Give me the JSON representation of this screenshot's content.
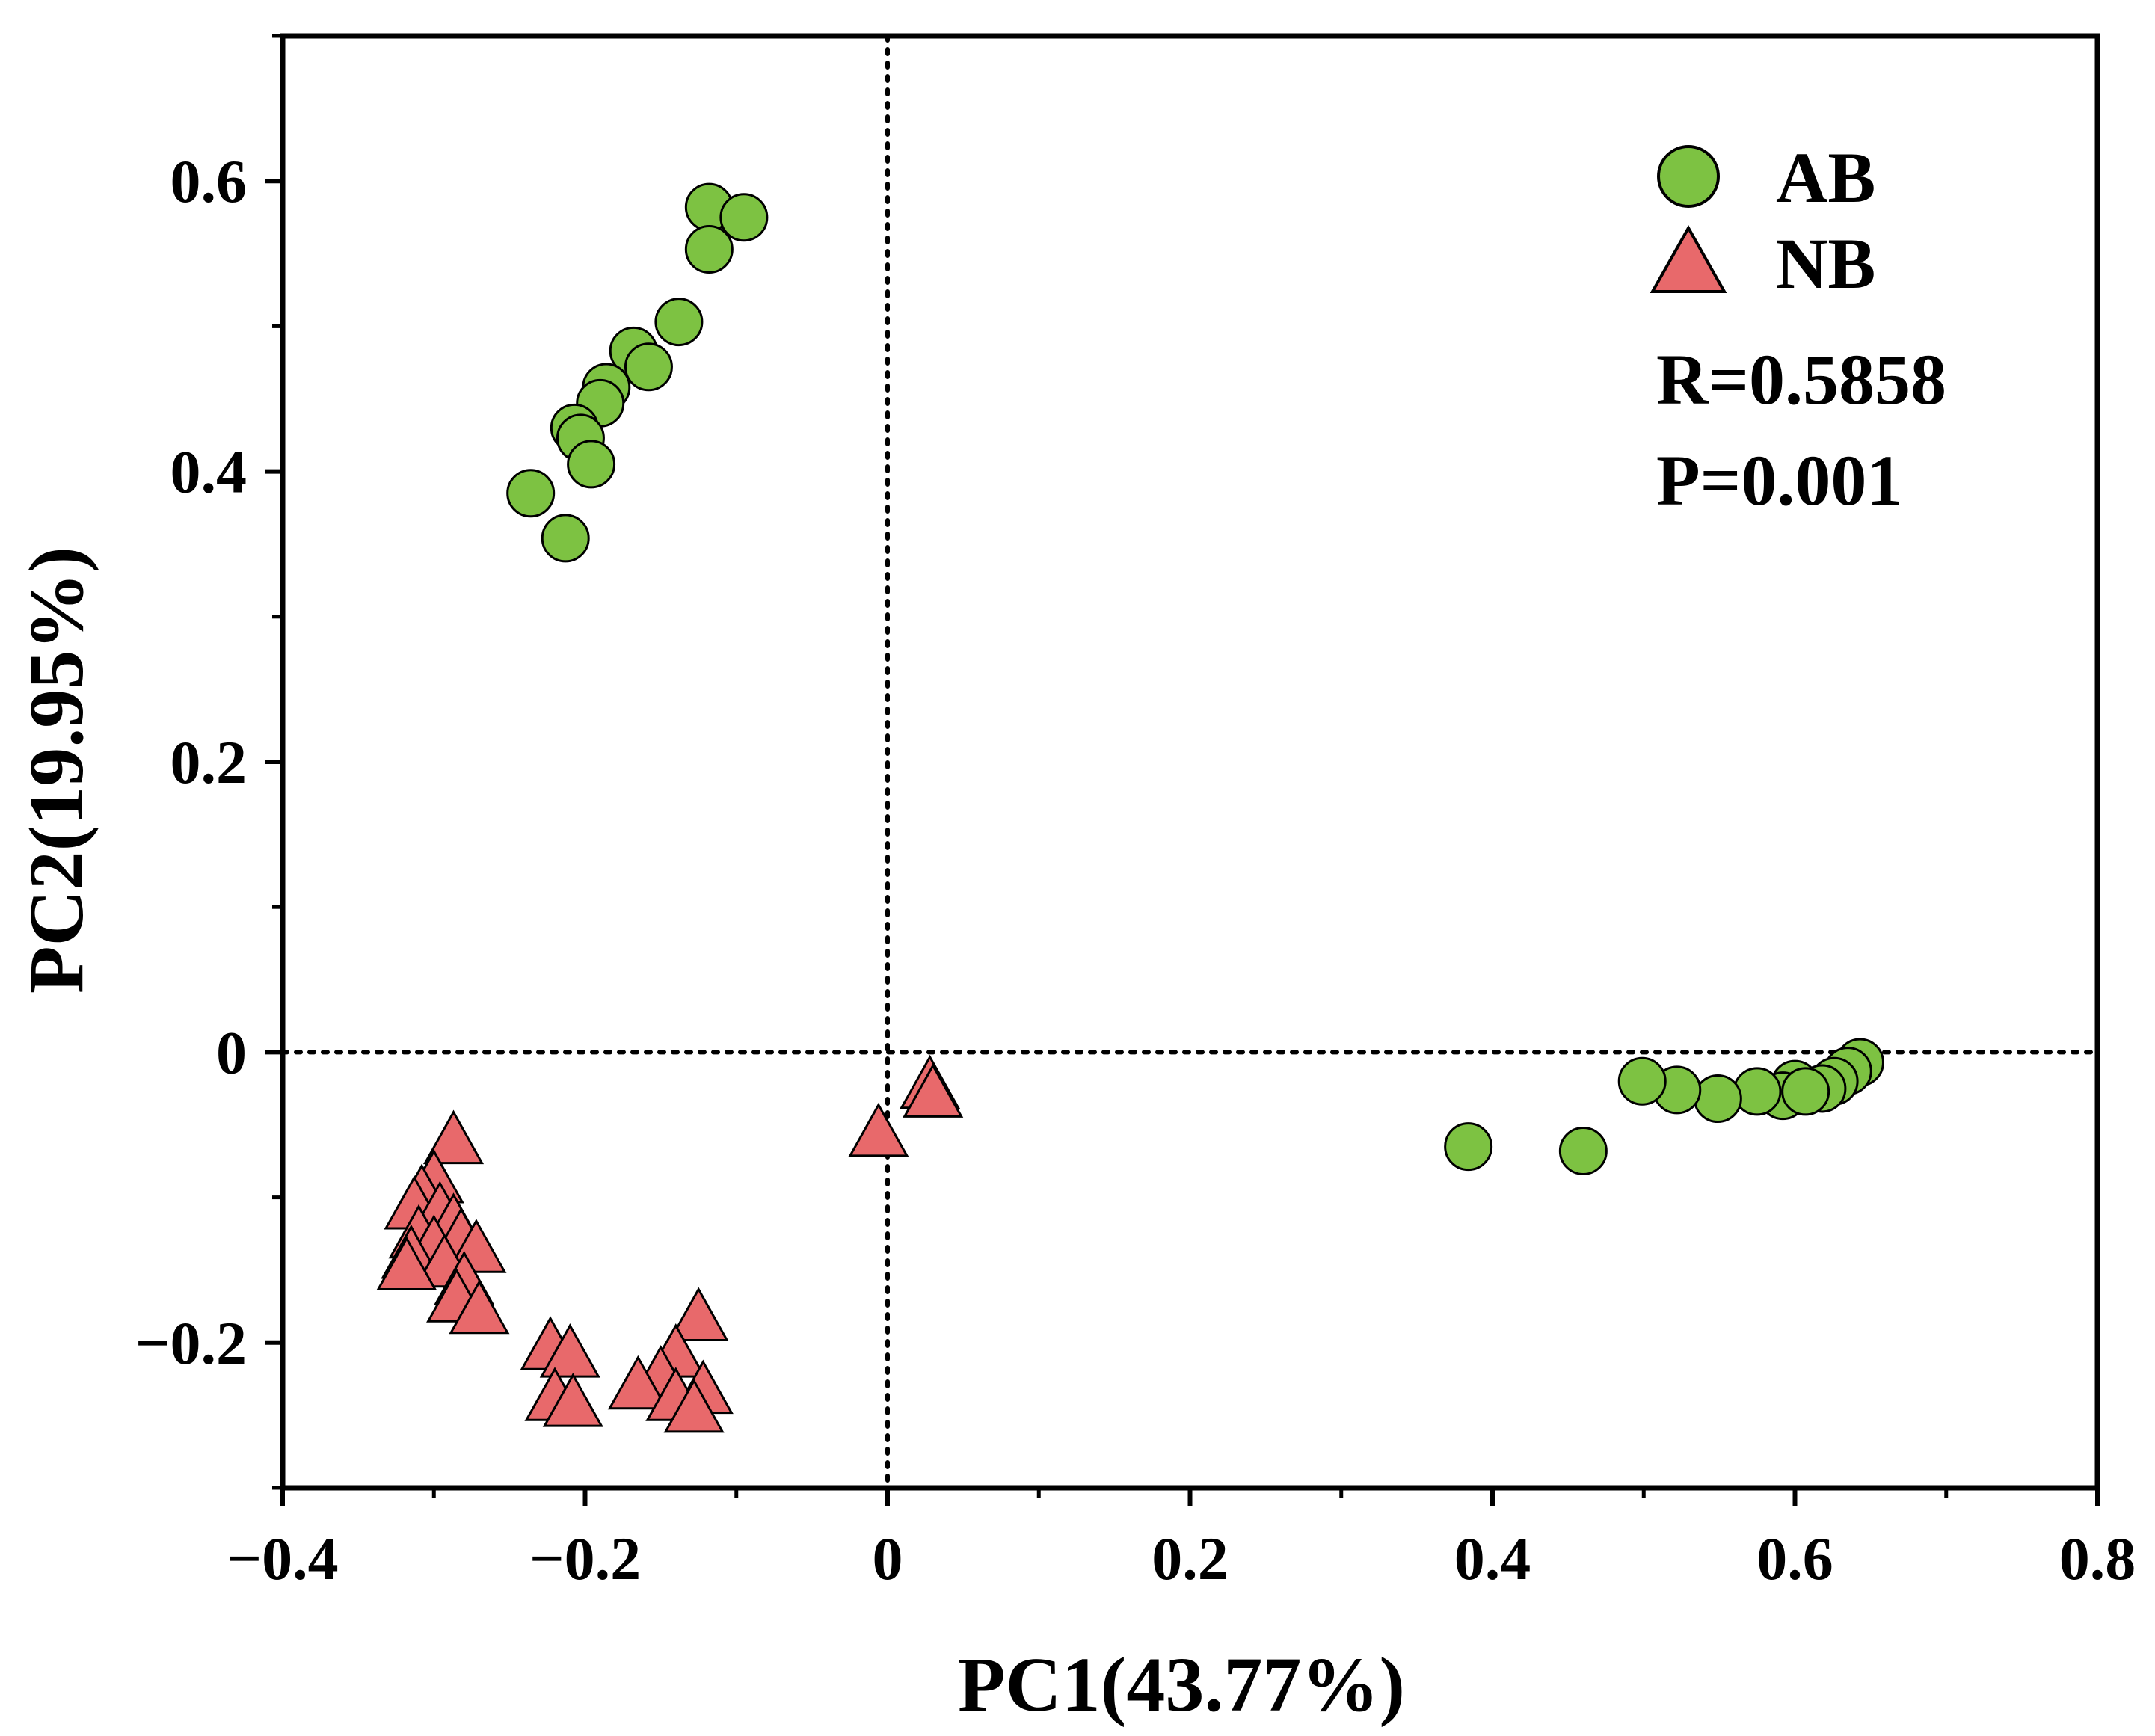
{
  "chart_data": {
    "type": "scatter",
    "title": "",
    "xlabel": "PC1(43.77%)",
    "ylabel": "PC2(19.95%)",
    "xlim": [
      -0.4,
      0.8
    ],
    "ylim": [
      -0.3,
      0.7
    ],
    "xticks": [
      -0.4,
      -0.2,
      0,
      0.2,
      0.4,
      0.6,
      0.8
    ],
    "xtick_labels": [
      "−0.4",
      "−0.2",
      "0",
      "0.2",
      "0.4",
      "0.6",
      "0.8"
    ],
    "yticks": [
      -0.2,
      0,
      0.2,
      0.4,
      0.6
    ],
    "ytick_labels": [
      "−0.2",
      "0",
      "0.2",
      "0.4",
      "0.6"
    ],
    "reference_lines": {
      "x": 0,
      "y": 0,
      "style": "dotted"
    },
    "grid": false,
    "legend_position": "top-right",
    "series": [
      {
        "name": "AB",
        "marker": "circle",
        "color": "#7dc242",
        "points": [
          [
            -0.118,
            0.582
          ],
          [
            -0.095,
            0.575
          ],
          [
            -0.118,
            0.553
          ],
          [
            -0.138,
            0.503
          ],
          [
            -0.168,
            0.483
          ],
          [
            -0.158,
            0.472
          ],
          [
            -0.186,
            0.458
          ],
          [
            -0.19,
            0.447
          ],
          [
            -0.207,
            0.43
          ],
          [
            -0.203,
            0.423
          ],
          [
            -0.196,
            0.405
          ],
          [
            -0.236,
            0.385
          ],
          [
            -0.213,
            0.354
          ],
          [
            0.643,
            -0.007
          ],
          [
            0.635,
            -0.013
          ],
          [
            0.626,
            -0.02
          ],
          [
            0.618,
            -0.025
          ],
          [
            0.6,
            -0.022
          ],
          [
            0.592,
            -0.03
          ],
          [
            0.607,
            -0.027
          ],
          [
            0.575,
            -0.027
          ],
          [
            0.549,
            -0.032
          ],
          [
            0.522,
            -0.026
          ],
          [
            0.499,
            -0.02
          ],
          [
            0.384,
            -0.065
          ],
          [
            0.46,
            -0.068
          ]
        ]
      },
      {
        "name": "NB",
        "marker": "triangle",
        "color": "#e8696b",
        "points": [
          [
            0.028,
            -0.025
          ],
          [
            0.03,
            -0.031
          ],
          [
            -0.006,
            -0.058
          ],
          [
            -0.287,
            -0.063
          ],
          [
            -0.3,
            -0.09
          ],
          [
            -0.308,
            -0.1
          ],
          [
            -0.313,
            -0.108
          ],
          [
            -0.296,
            -0.112
          ],
          [
            -0.287,
            -0.12
          ],
          [
            -0.31,
            -0.128
          ],
          [
            -0.282,
            -0.13
          ],
          [
            -0.3,
            -0.135
          ],
          [
            -0.272,
            -0.138
          ],
          [
            -0.315,
            -0.142
          ],
          [
            -0.293,
            -0.148
          ],
          [
            -0.318,
            -0.15
          ],
          [
            -0.28,
            -0.16
          ],
          [
            -0.285,
            -0.172
          ],
          [
            -0.27,
            -0.18
          ],
          [
            -0.125,
            -0.185
          ],
          [
            -0.14,
            -0.21
          ],
          [
            -0.223,
            -0.205
          ],
          [
            -0.21,
            -0.21
          ],
          [
            -0.15,
            -0.225
          ],
          [
            -0.165,
            -0.232
          ],
          [
            -0.122,
            -0.235
          ],
          [
            -0.14,
            -0.24
          ],
          [
            -0.22,
            -0.24
          ],
          [
            -0.208,
            -0.244
          ],
          [
            -0.128,
            -0.248
          ]
        ]
      }
    ],
    "annotations": [
      "R=0.5858",
      "P=0.001"
    ]
  }
}
